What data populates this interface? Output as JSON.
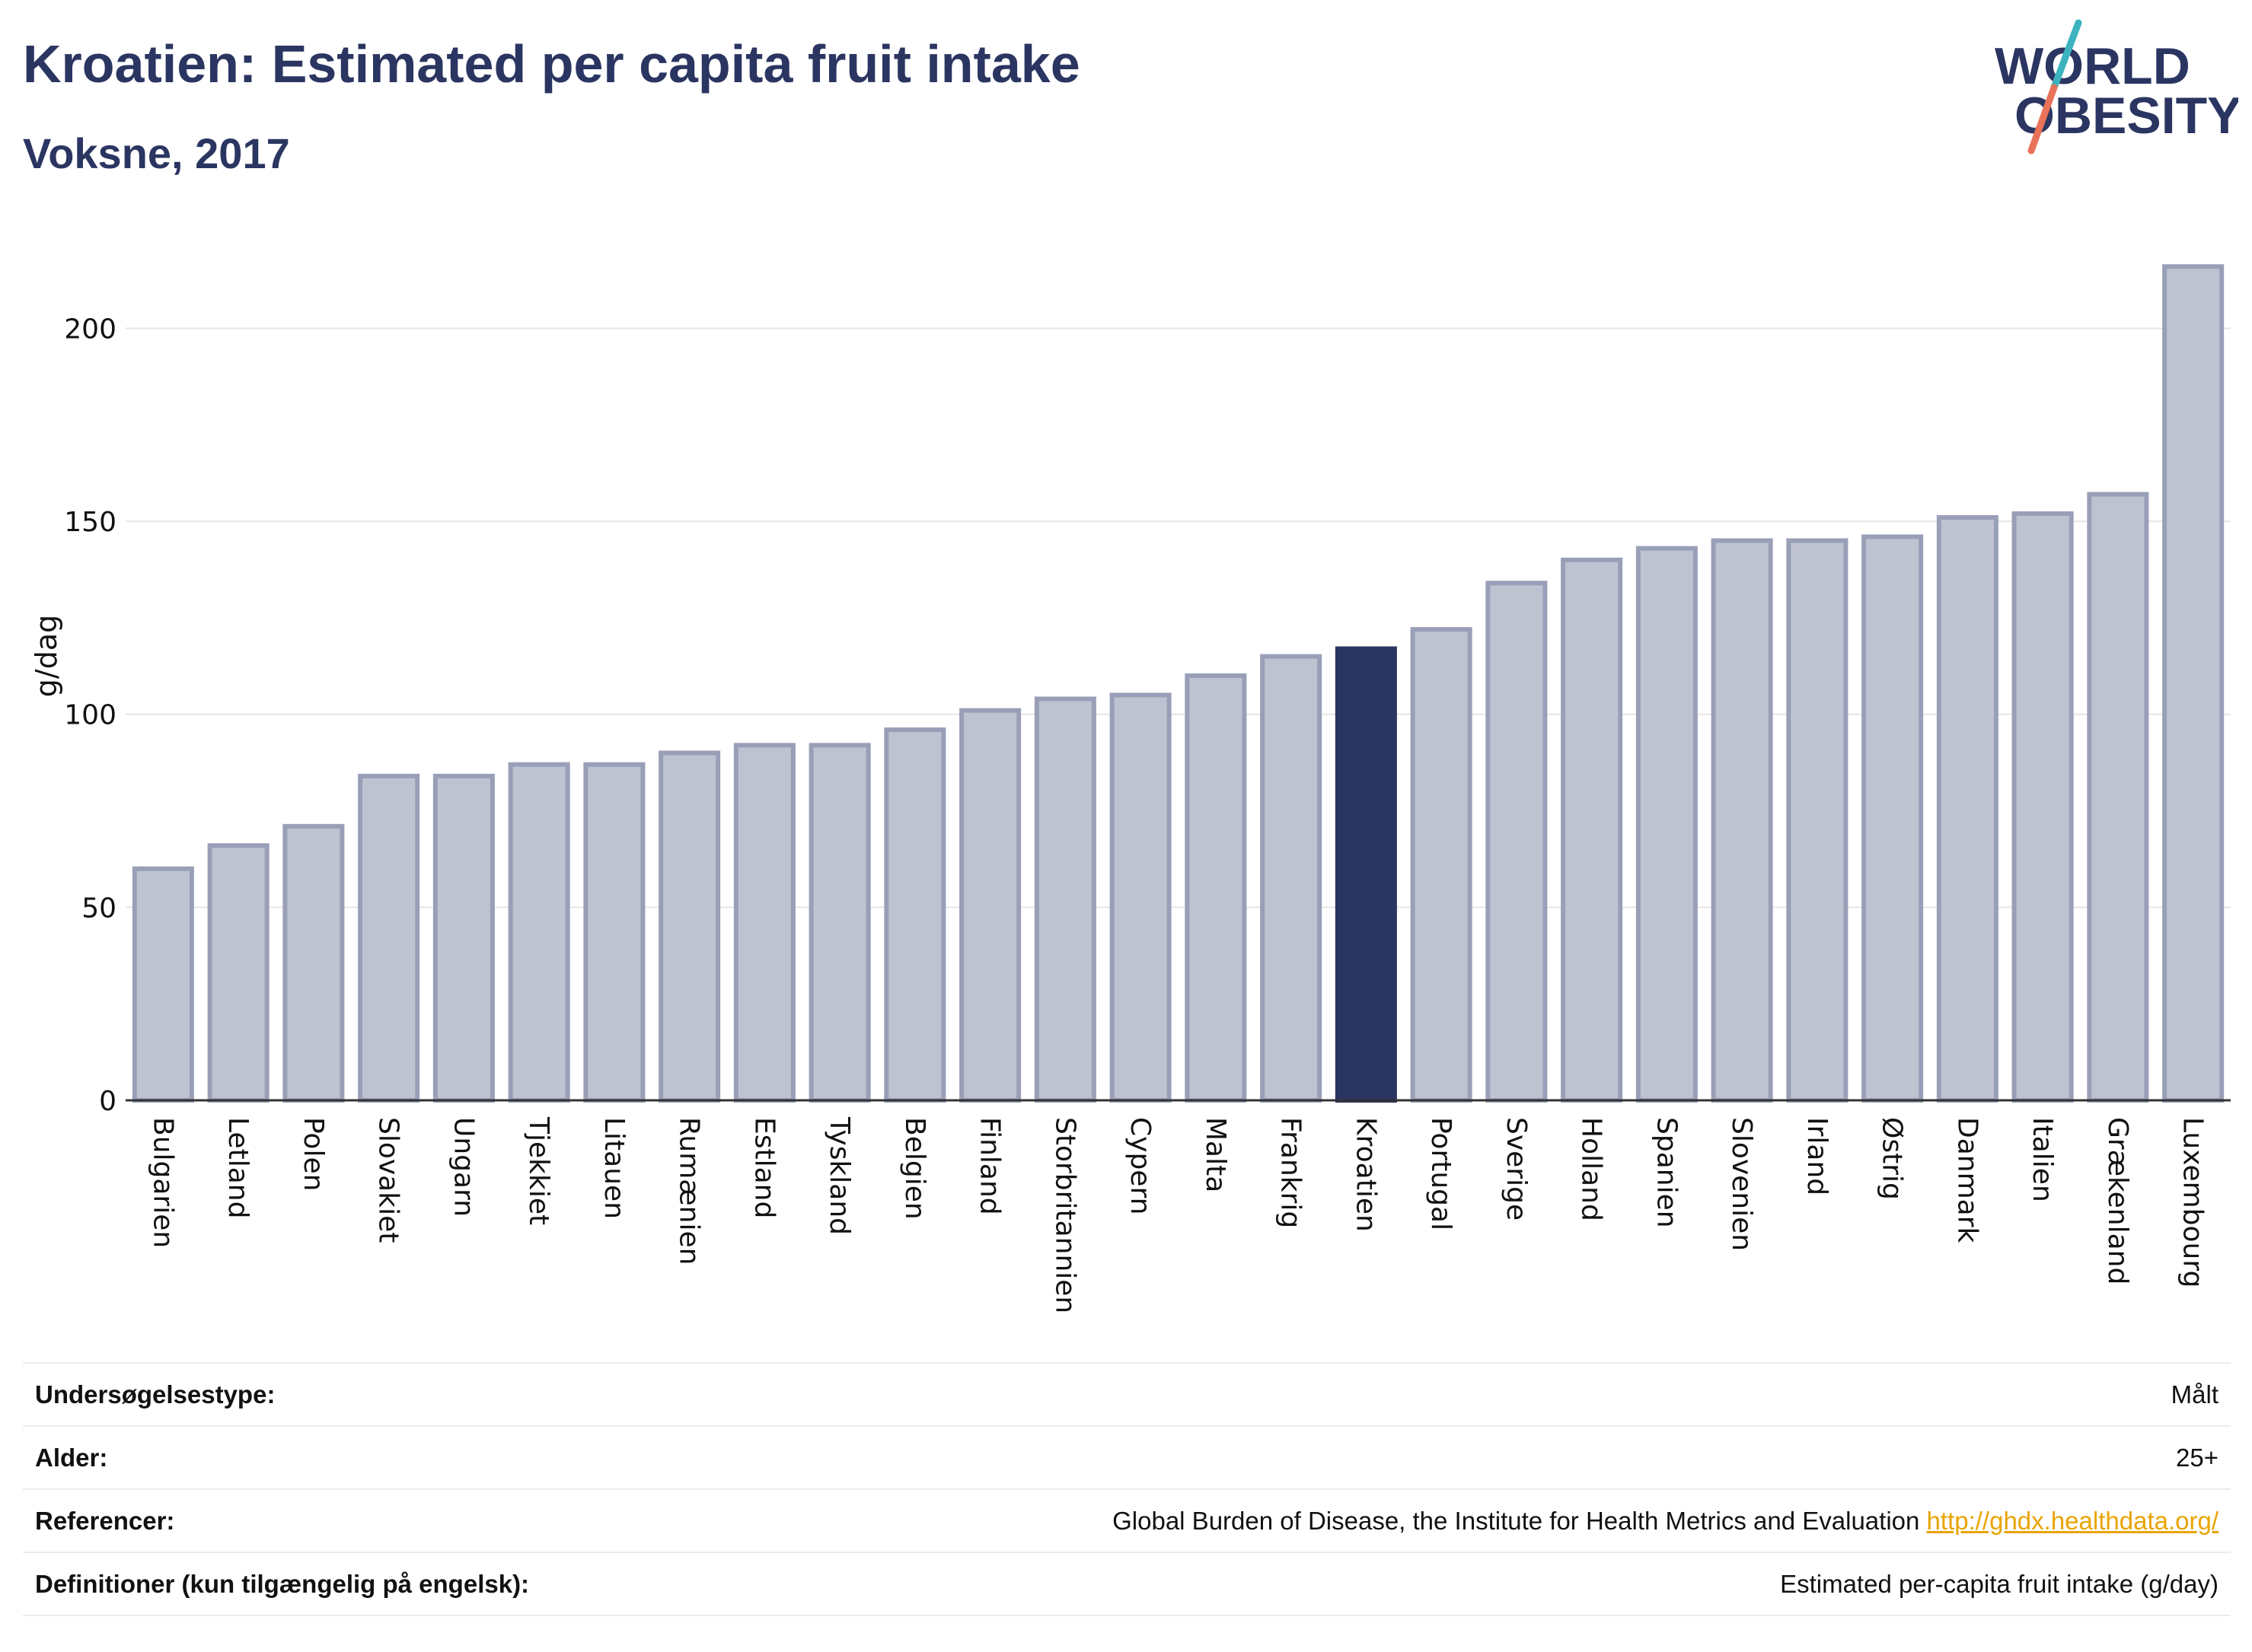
{
  "header": {
    "title": "Kroatien: Estimated per capita fruit intake",
    "subtitle": "Voksne, 2017",
    "logo_line1": "WORLD",
    "logo_line2": "OBESITY"
  },
  "colors": {
    "highlight": "#2b3561",
    "bar_fill": "#bfc2d0",
    "bar_stroke": "#9a9fb8",
    "title": "#2b3561",
    "logo_slash_top": "#3db3c0",
    "logo_slash_bottom": "#e8735a",
    "link": "#e8a400"
  },
  "chart_data": {
    "type": "bar",
    "title": "Kroatien: Estimated per capita fruit intake",
    "subtitle": "Voksne, 2017",
    "xlabel": "",
    "ylabel": "g/dag",
    "ylim": [
      0,
      220
    ],
    "yticks": [
      0,
      50,
      100,
      150,
      200
    ],
    "grid": true,
    "legend": "none",
    "highlight": "Kroatien",
    "categories": [
      "Bulgarien",
      "Letland",
      "Polen",
      "Slovakiet",
      "Ungarn",
      "Tjekkiet",
      "Litauen",
      "Rumænien",
      "Estland",
      "Tyskland",
      "Belgien",
      "Finland",
      "Storbritannien",
      "Cypern",
      "Malta",
      "Frankrig",
      "Kroatien",
      "Portugal",
      "Sverige",
      "Holland",
      "Spanien",
      "Slovenien",
      "Irland",
      "Østrig",
      "Danmark",
      "Italien",
      "Grækenland",
      "Luxembourg"
    ],
    "values": [
      60,
      66,
      71,
      84,
      84,
      87,
      87,
      90,
      92,
      92,
      96,
      101,
      104,
      105,
      110,
      115,
      117,
      122,
      134,
      140,
      143,
      145,
      145,
      146,
      151,
      152,
      157,
      216
    ]
  },
  "info_table": [
    {
      "key": "Undersøgelsestype:",
      "value": "Målt"
    },
    {
      "key": "Alder:",
      "value": "25+"
    },
    {
      "key": "Referencer:",
      "value": "Global Burden of Disease, the Institute for Health Metrics and Evaluation",
      "link": "http://ghdx.healthdata.org/"
    },
    {
      "key": "Definitioner (kun tilgængelig på engelsk):",
      "value": "Estimated per-capita fruit intake (g/day)"
    }
  ]
}
